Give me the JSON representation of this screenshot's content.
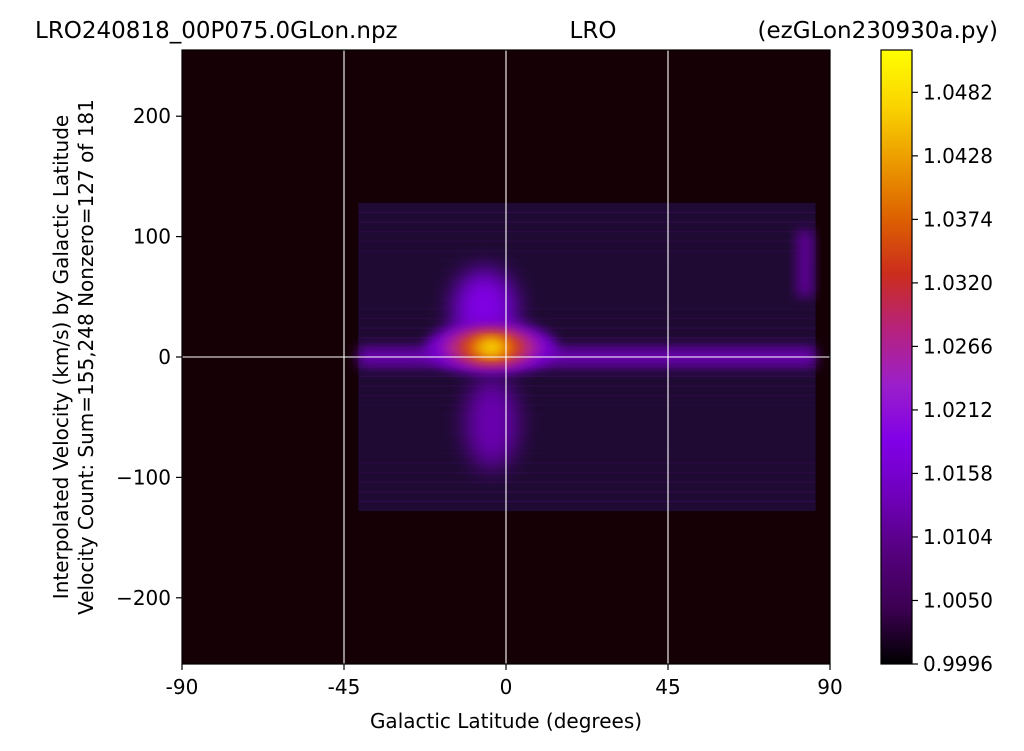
{
  "title": {
    "left": "LRO240818_00P075.0GLon.npz",
    "center": "LRO",
    "right": "(ezGLon230930a.py)"
  },
  "chart_data": {
    "type": "heatmap",
    "xlabel": "Galactic Latitude (degrees)",
    "ylabel_line1": "Interpolated Velocity (km/s) by Galactic Latitude",
    "ylabel_line2": "Velocity Count: Sum=155,248 Nonzero=127 of 181",
    "xlim": [
      -90,
      90
    ],
    "ylim": [
      -255,
      255
    ],
    "x_ticks": [
      -90,
      -45,
      0,
      45,
      90
    ],
    "x_tick_labels": [
      "-90",
      "-45",
      "0",
      "45",
      "90"
    ],
    "y_ticks": [
      200,
      100,
      0,
      -100,
      -200
    ],
    "y_tick_labels": [
      "200",
      "100",
      "0",
      "−100",
      "−200"
    ],
    "grid_lines": {
      "x": [
        -45,
        0,
        45
      ],
      "y": [
        0
      ]
    },
    "data_extent": {
      "x": [
        -41,
        86
      ],
      "velocity": [
        -128,
        128
      ]
    },
    "colormap": "gnuplot",
    "colorbar": {
      "min": 0.9996,
      "max": 1.0518,
      "ticks": [
        1.0482,
        1.0428,
        1.0374,
        1.032,
        1.0266,
        1.0212,
        1.0158,
        1.0104,
        1.005,
        0.9996
      ],
      "tick_labels": [
        "1.0482",
        "1.0428",
        "1.0374",
        "1.0320",
        "1.0266",
        "1.0212",
        "1.0158",
        "1.0104",
        "1.0050",
        "0.9996"
      ],
      "stops": [
        "#000000",
        "#3c0052",
        "#55007e",
        "#6f00bb",
        "#8100e8",
        "#9b1fca",
        "#b6227c",
        "#cc2d1c",
        "#dd6200",
        "#ec9a00",
        "#fad400",
        "#ffff00"
      ]
    },
    "features": [
      {
        "name": "core",
        "x": -3,
        "v": 8,
        "level": 1.042
      },
      {
        "name": "disk-band",
        "x": [
          -41,
          86
        ],
        "v": [
          -8,
          8
        ],
        "level": 1.013
      },
      {
        "name": "upper-lobe",
        "x": -6,
        "v": 40,
        "level": 1.018
      },
      {
        "name": "lower-lobe",
        "x": -4,
        "v": -55,
        "level": 1.013
      },
      {
        "name": "edge-strip",
        "x": 83,
        "v": 80,
        "level": 1.011
      }
    ],
    "background_colors": {
      "field": "#140005",
      "sky": "#1e0a32",
      "plot_bg": "#140005"
    }
  }
}
